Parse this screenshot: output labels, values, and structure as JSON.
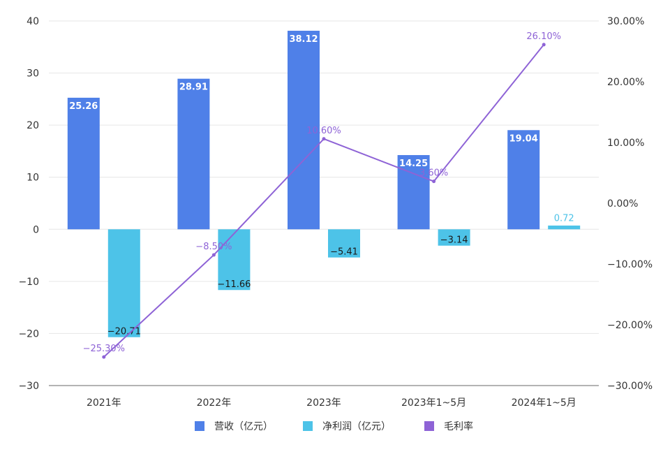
{
  "chart_data": {
    "type": "bar",
    "categories": [
      "2021年",
      "2022年",
      "2023年",
      "2023年1~5月",
      "2024年1~5月"
    ],
    "series": [
      {
        "name": "营收（亿元）",
        "kind": "bar",
        "axis": "left",
        "color": "#4F80E8",
        "values": [
          25.26,
          28.91,
          38.12,
          14.25,
          19.04
        ],
        "value_labels": [
          "25.26",
          "28.91",
          "38.12",
          "14.25",
          "19.04"
        ]
      },
      {
        "name": "净利润（亿元）",
        "kind": "bar",
        "axis": "left",
        "color": "#4DC3E8",
        "values": [
          -20.71,
          -11.66,
          -5.41,
          -3.14,
          0.72
        ],
        "value_labels": [
          "−20.71",
          "−11.66",
          "−5.41",
          "−3.14",
          "0.72"
        ]
      },
      {
        "name": "毛利率",
        "kind": "line",
        "axis": "right",
        "color": "#8E63D6",
        "values": [
          -25.3,
          -8.5,
          10.6,
          3.6,
          26.1
        ],
        "value_labels": [
          "−25.30%",
          "−8.50%",
          "10.60%",
          "3.60%",
          "26.10%"
        ]
      }
    ],
    "left_axis": {
      "ylim": [
        -30,
        40
      ],
      "ticks": [
        40,
        30,
        20,
        10,
        0,
        -10,
        -20,
        -30
      ],
      "tick_labels": [
        "40",
        "30",
        "20",
        "10",
        "0",
        "−10",
        "−20",
        "−30"
      ]
    },
    "right_axis": {
      "ylim": [
        -30,
        30
      ],
      "ticks": [
        30,
        20,
        10,
        0,
        -10,
        -20,
        -30
      ],
      "tick_labels": [
        "30.00%",
        "20.00%",
        "10.00%",
        "0.00%",
        "−10.00%",
        "−20.00%",
        "−30.00%"
      ]
    },
    "grid": true,
    "legend": "bottom-center"
  }
}
